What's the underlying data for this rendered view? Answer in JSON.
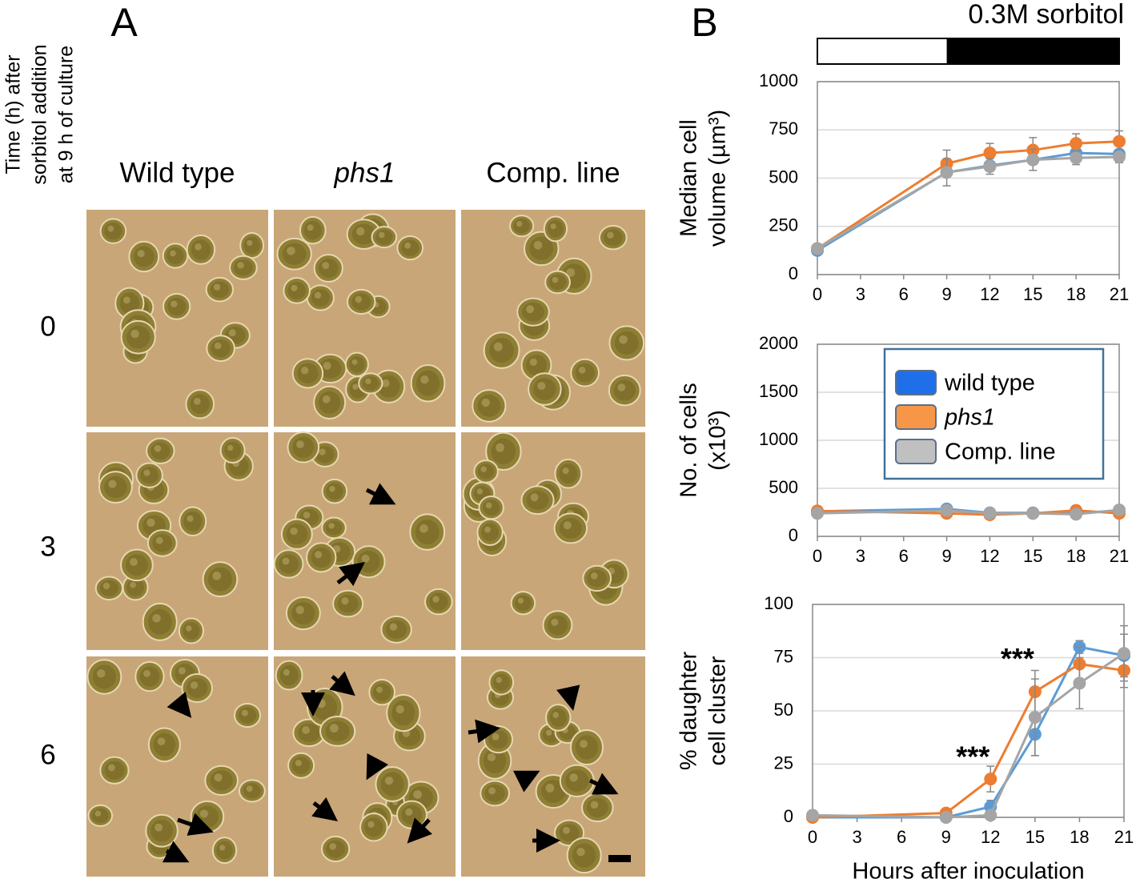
{
  "panel_a": {
    "letter": "A",
    "y_title": [
      "Time (h) after",
      "sorbitol addition",
      "at 9 h of culture"
    ],
    "columns": [
      "Wild type",
      "phs1",
      "Comp. line"
    ],
    "rows": [
      "0",
      "3",
      "6"
    ]
  },
  "panel_b": {
    "letter": "B",
    "treatment": {
      "label": "0.3M sorbitol",
      "start": 9
    }
  },
  "chart_data": [
    {
      "type": "line",
      "y_label": [
        "Median cell",
        "volume (µm³)"
      ],
      "x": [
        0,
        9,
        12,
        15,
        18,
        21
      ],
      "xlim": [
        0,
        21
      ],
      "xticks": [
        0,
        3,
        6,
        9,
        12,
        15,
        18,
        21
      ],
      "ylim": [
        0,
        1000
      ],
      "yticks": [
        0,
        250,
        500,
        750,
        1000
      ],
      "grid": true,
      "series": [
        {
          "color": "#5b9bd5",
          "values": [
            125,
            530,
            565,
            595,
            630,
            625
          ]
        },
        {
          "color": "#ed7d31",
          "values": [
            135,
            575,
            630,
            645,
            680,
            690
          ],
          "errors": [
            10,
            70,
            50,
            65,
            50,
            55
          ]
        },
        {
          "color": "#a5a5a5",
          "values": [
            135,
            530,
            560,
            595,
            605,
            610
          ],
          "errors": [
            10,
            70,
            40,
            55,
            35,
            30
          ]
        }
      ]
    },
    {
      "type": "line",
      "y_label": [
        "No. of cells",
        "(x10³)"
      ],
      "x": [
        0,
        9,
        12,
        15,
        18,
        21
      ],
      "xlim": [
        0,
        21
      ],
      "xticks": [
        0,
        3,
        6,
        9,
        12,
        15,
        18,
        21
      ],
      "ylim": [
        0,
        2000
      ],
      "yticks": [
        0,
        500,
        1000,
        1500,
        2000
      ],
      "grid": true,
      "legend": "upper right",
      "series": [
        {
          "name": "wild type",
          "color": "#5b9bd5",
          "legend_color": "#1f6fe8",
          "values": [
            260,
            285,
            245,
            245,
            240,
            270
          ]
        },
        {
          "name": "phs1",
          "color": "#ed7d31",
          "legend_color": "#f79646",
          "values": [
            265,
            240,
            225,
            240,
            270,
            240
          ],
          "errors": [
            15,
            30,
            30,
            25,
            50,
            30
          ]
        },
        {
          "name": "Comp. line",
          "color": "#a5a5a5",
          "legend_color": "#c0c0c0",
          "values": [
            240,
            270,
            240,
            240,
            230,
            275
          ]
        }
      ]
    },
    {
      "type": "line",
      "y_label": [
        "% daughter",
        "cell cluster"
      ],
      "x_label": "Hours after inoculation",
      "x": [
        0,
        9,
        12,
        15,
        18,
        21
      ],
      "xlim": [
        0,
        21
      ],
      "xticks": [
        0,
        3,
        6,
        9,
        12,
        15,
        18,
        21
      ],
      "ylim": [
        0,
        100
      ],
      "yticks": [
        0,
        25,
        50,
        75,
        100
      ],
      "grid": true,
      "annotations": [
        "***",
        "***"
      ],
      "series": [
        {
          "color": "#5b9bd5",
          "values": [
            0,
            0,
            5,
            39,
            80,
            76
          ],
          "errors": [
            1,
            1,
            3,
            10,
            3,
            10
          ]
        },
        {
          "color": "#ed7d31",
          "values": [
            0,
            2,
            18,
            59,
            72,
            69
          ],
          "errors": [
            1,
            2,
            6,
            10,
            8,
            8
          ]
        },
        {
          "color": "#a5a5a5",
          "values": [
            1,
            0,
            1,
            47,
            63,
            77
          ],
          "errors": [
            1,
            1,
            2,
            18,
            12,
            13
          ]
        }
      ]
    }
  ]
}
